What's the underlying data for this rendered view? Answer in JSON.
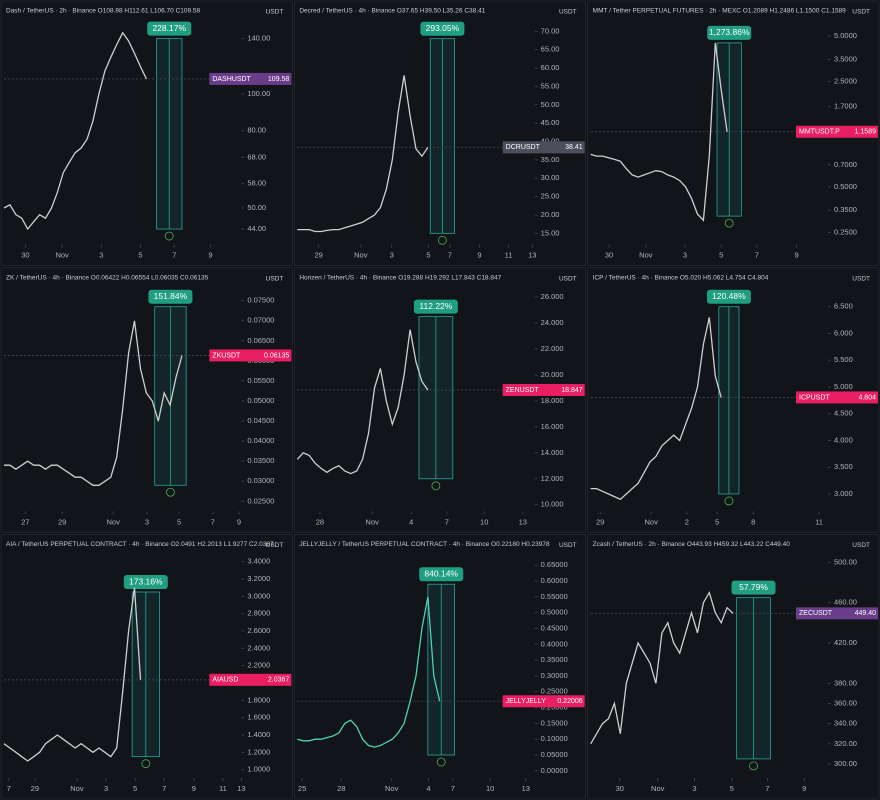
{
  "chart_data": [
    {
      "type": "line",
      "title": "Dash / TetherUS · 2h · Binance  O108.98 H112.61 L106.70 C109.58",
      "unit": "USDT",
      "log_scale": true,
      "color": "#cfcfcf",
      "values": [
        50,
        51,
        48,
        47,
        44,
        46,
        48,
        47,
        50,
        55,
        62,
        66,
        70,
        72,
        76,
        85,
        100,
        115,
        125,
        135,
        145,
        138,
        128,
        118,
        109.58
      ],
      "xlim": [
        0,
        40
      ],
      "xticks": [
        {
          "value": 3.6,
          "label": "30"
        },
        {
          "value": 9.8,
          "label": "Nov"
        },
        {
          "value": 16.4,
          "label": "3"
        },
        {
          "value": 23,
          "label": "5"
        },
        {
          "value": 28.7,
          "label": "7"
        },
        {
          "value": 34.8,
          "label": "9"
        }
      ],
      "ylim": [
        41,
        153
      ],
      "yticks": [
        {
          "value": 44,
          "label": "44.00"
        },
        {
          "value": 50,
          "label": "50.00"
        },
        {
          "value": 58,
          "label": "58.00"
        },
        {
          "value": 68,
          "label": "68.00"
        },
        {
          "value": 80,
          "label": "80.00"
        },
        {
          "value": 100,
          "label": "100.00"
        },
        {
          "value": 140,
          "label": "140.00"
        }
      ],
      "price_label": {
        "symbol": "DASHUSDT",
        "value": 109.58,
        "color": "#6a3d8a"
      },
      "measure": {
        "label": "228.17%",
        "x": [
          25.7,
          30
        ],
        "y": [
          44,
          140
        ]
      }
    },
    {
      "type": "line",
      "title": "Decred / TetherUS · 4h · Binance  O37.65 H39.50 L35.26 C38.41",
      "unit": "USDT",
      "color": "#cfcfcf",
      "values": [
        16,
        16,
        16,
        15.5,
        15.5,
        15.8,
        16,
        16,
        16.5,
        17,
        17.5,
        18,
        19,
        20,
        22,
        27,
        35,
        48,
        58,
        47,
        38,
        36,
        38.41
      ],
      "xlim": [
        0,
        40
      ],
      "xticks": [
        {
          "value": 3.6,
          "label": "29"
        },
        {
          "value": 10.7,
          "label": "Nov"
        },
        {
          "value": 15.9,
          "label": "3"
        },
        {
          "value": 22.1,
          "label": "5"
        },
        {
          "value": 25.7,
          "label": "7"
        },
        {
          "value": 30.7,
          "label": "9"
        },
        {
          "value": 35.6,
          "label": "11"
        },
        {
          "value": 39.6,
          "label": "13"
        }
      ],
      "ylim": [
        13,
        72
      ],
      "yticks": [
        {
          "value": 15,
          "label": "15.00"
        },
        {
          "value": 20,
          "label": "20.00"
        },
        {
          "value": 25,
          "label": "25.00"
        },
        {
          "value": 30,
          "label": "30.00"
        },
        {
          "value": 35,
          "label": "35.00"
        },
        {
          "value": 40,
          "label": "40.00"
        },
        {
          "value": 45,
          "label": "45.00"
        },
        {
          "value": 50,
          "label": "50.00"
        },
        {
          "value": 55,
          "label": "55.00"
        },
        {
          "value": 60,
          "label": "60.00"
        },
        {
          "value": 65,
          "label": "65.00"
        },
        {
          "value": 70,
          "label": "70.00"
        }
      ],
      "price_label": {
        "symbol": "DCRUSDT",
        "value": 38.41,
        "color": "#4a4f5c"
      },
      "measure": {
        "label": "293.05%",
        "x": [
          22.4,
          26.5
        ],
        "y": [
          15,
          68
        ]
      }
    },
    {
      "type": "line",
      "title": "MMT / Tether PERPETUAL FUTURES · 2h · MEXC  O1.2089 H1.2486 L1.1500 C1.1589",
      "unit": "USDT",
      "log_scale": true,
      "color": "#cfcfcf",
      "values": [
        0.82,
        0.8,
        0.8,
        0.78,
        0.76,
        0.74,
        0.66,
        0.6,
        0.58,
        0.6,
        0.62,
        0.64,
        0.63,
        0.6,
        0.58,
        0.55,
        0.5,
        0.42,
        0.33,
        0.3,
        0.8,
        4.5,
        2.2,
        1.1589
      ],
      "xlim": [
        0,
        40
      ],
      "xticks": [
        {
          "value": 3.1,
          "label": "30"
        },
        {
          "value": 9.3,
          "label": "Nov"
        },
        {
          "value": 15.9,
          "label": "3"
        },
        {
          "value": 22,
          "label": "5"
        },
        {
          "value": 28,
          "label": "7"
        },
        {
          "value": 34.7,
          "label": "9"
        }
      ],
      "ylim": [
        0.22,
        6
      ],
      "yticks": [
        {
          "value": 0.25,
          "label": "0.2500"
        },
        {
          "value": 0.35,
          "label": "0.3500"
        },
        {
          "value": 0.5,
          "label": "0.5000"
        },
        {
          "value": 0.7,
          "label": "0.7000"
        },
        {
          "value": 1.7,
          "label": "1.7000"
        },
        {
          "value": 2.5,
          "label": "2.5000"
        },
        {
          "value": 3.5,
          "label": "3.5000"
        },
        {
          "value": 5,
          "label": "5.0000"
        }
      ],
      "price_label": {
        "symbol": "MMTUSDT.P",
        "value": 1.1589,
        "color": "#e91e63"
      },
      "measure": {
        "label": "1,273.86%",
        "x": [
          21.3,
          25.4
        ],
        "y": [
          0.32,
          4.5
        ]
      }
    },
    {
      "type": "line",
      "title": "ZK / TetherUS · 4h · Binance  O0.06422 H0.06554 L0.06035 C0.06135",
      "unit": "USDT",
      "color": "#cfcfcf",
      "values": [
        0.034,
        0.034,
        0.033,
        0.034,
        0.035,
        0.034,
        0.034,
        0.033,
        0.034,
        0.034,
        0.033,
        0.032,
        0.031,
        0.031,
        0.03,
        0.029,
        0.029,
        0.03,
        0.031,
        0.036,
        0.048,
        0.062,
        0.07,
        0.058,
        0.052,
        0.05,
        0.045,
        0.052,
        0.049,
        0.056,
        0.06135
      ],
      "xlim": [
        0,
        40
      ],
      "xticks": [
        {
          "value": 3.6,
          "label": "27"
        },
        {
          "value": 9.8,
          "label": "29"
        },
        {
          "value": 18.4,
          "label": "Nov"
        },
        {
          "value": 24.1,
          "label": "3"
        },
        {
          "value": 29.5,
          "label": "5"
        },
        {
          "value": 35.2,
          "label": "7"
        },
        {
          "value": 39.6,
          "label": "9"
        }
      ],
      "ylim": [
        0.0235,
        0.0775
      ],
      "yticks": [
        {
          "value": 0.025,
          "label": "0.02500"
        },
        {
          "value": 0.03,
          "label": "0.03000"
        },
        {
          "value": 0.035,
          "label": "0.03500"
        },
        {
          "value": 0.04,
          "label": "0.04000"
        },
        {
          "value": 0.045,
          "label": "0.04500"
        },
        {
          "value": 0.05,
          "label": "0.05000"
        },
        {
          "value": 0.055,
          "label": "0.05500"
        },
        {
          "value": 0.06,
          "label": "0.06000"
        },
        {
          "value": 0.065,
          "label": "0.06500"
        },
        {
          "value": 0.07,
          "label": "0.07000"
        },
        {
          "value": 0.075,
          "label": "0.07500"
        }
      ],
      "price_label": {
        "symbol": "ZKUSDT",
        "value": 0.06135,
        "color": "#e91e63"
      },
      "measure": {
        "label": "151.84%",
        "x": [
          25.4,
          30.7
        ],
        "y": [
          0.029,
          0.0735
        ]
      }
    },
    {
      "type": "line",
      "title": "Horizen / TetherUS · 4h · Binance  O19.288 H19.292 L17.843 C18.847",
      "unit": "USDT",
      "color": "#cfcfcf",
      "values": [
        13.5,
        14,
        13.8,
        13.2,
        12.8,
        12.5,
        12.8,
        13,
        12.6,
        12.4,
        12.6,
        13.5,
        15.5,
        19,
        20.5,
        18,
        16.2,
        17.5,
        20,
        23.5,
        21,
        19.5,
        18.847
      ],
      "xlim": [
        0,
        40
      ],
      "xticks": [
        {
          "value": 3.8,
          "label": "28"
        },
        {
          "value": 12.6,
          "label": "Nov"
        },
        {
          "value": 19.2,
          "label": "4"
        },
        {
          "value": 25.2,
          "label": "7"
        },
        {
          "value": 31.5,
          "label": "10"
        },
        {
          "value": 38,
          "label": "13"
        }
      ],
      "ylim": [
        9.8,
        26.5
      ],
      "yticks": [
        {
          "value": 10,
          "label": "10.000"
        },
        {
          "value": 12,
          "label": "12.000"
        },
        {
          "value": 14,
          "label": "14.000"
        },
        {
          "value": 16,
          "label": "16.000"
        },
        {
          "value": 18,
          "label": "18.000"
        },
        {
          "value": 20,
          "label": "20.000"
        },
        {
          "value": 22,
          "label": "22.000"
        },
        {
          "value": 24,
          "label": "24.000"
        },
        {
          "value": 26,
          "label": "26.000"
        }
      ],
      "price_label": {
        "symbol": "ZENUSDT",
        "value": 18.847,
        "color": "#e91e63"
      },
      "measure": {
        "label": "112.22%",
        "x": [
          20.5,
          26.2
        ],
        "y": [
          12,
          24.5
        ]
      }
    },
    {
      "type": "line",
      "title": "ICP / TetherUS · 4h · Binance  O5.020 H5.062 L4.754 C4.804",
      "unit": "USDT",
      "color": "#cfcfcf",
      "values": [
        3.1,
        3.1,
        3.05,
        3,
        2.95,
        2.9,
        3,
        3.1,
        3.2,
        3.4,
        3.6,
        3.7,
        3.9,
        4,
        4.1,
        4,
        4.3,
        4.6,
        5,
        5.8,
        6.3,
        5.2,
        4.804
      ],
      "xlim": [
        0,
        40
      ],
      "xticks": [
        {
          "value": 1.6,
          "label": "29"
        },
        {
          "value": 10.2,
          "label": "Nov"
        },
        {
          "value": 16.2,
          "label": "2"
        },
        {
          "value": 21.3,
          "label": "5"
        },
        {
          "value": 27.4,
          "label": "8"
        },
        {
          "value": 38.5,
          "label": "11"
        }
      ],
      "ylim": [
        2.75,
        6.8
      ],
      "yticks": [
        {
          "value": 3,
          "label": "3.000"
        },
        {
          "value": 3.5,
          "label": "3.500"
        },
        {
          "value": 4,
          "label": "4.000"
        },
        {
          "value": 4.5,
          "label": "4.500"
        },
        {
          "value": 5,
          "label": "5.000"
        },
        {
          "value": 5.5,
          "label": "5.500"
        },
        {
          "value": 6,
          "label": "6.000"
        },
        {
          "value": 6.5,
          "label": "6.500"
        }
      ],
      "price_label": {
        "symbol": "ICPUSDT",
        "value": 4.804,
        "color": "#e91e63"
      },
      "measure": {
        "label": "120.48%",
        "x": [
          21.6,
          25
        ],
        "y": [
          3,
          6.5
        ]
      }
    },
    {
      "type": "line",
      "title": "AIA / TetherUS PERPETUAL CONTRACT · 4h · Binance  O2.0491 H2.2013 L1.9277 C2.0367",
      "unit": "USDT",
      "color": "#cfcfcf",
      "values": [
        1.3,
        1.25,
        1.2,
        1.15,
        1.1,
        1.15,
        1.2,
        1.3,
        1.35,
        1.4,
        1.35,
        1.3,
        1.25,
        1.3,
        1.25,
        1.2,
        1.25,
        1.2,
        1.15,
        1.25,
        1.9,
        2.6,
        3.1,
        2.0367
      ],
      "xlim": [
        0,
        40
      ],
      "xticks": [
        {
          "value": 0.8,
          "label": "7"
        },
        {
          "value": 5.2,
          "label": "29"
        },
        {
          "value": 12.3,
          "label": "Nov"
        },
        {
          "value": 17.2,
          "label": "3"
        },
        {
          "value": 22.1,
          "label": "5"
        },
        {
          "value": 27,
          "label": "7"
        },
        {
          "value": 32,
          "label": "9"
        },
        {
          "value": 36.9,
          "label": "11"
        },
        {
          "value": 40,
          "label": "13"
        }
      ],
      "ylim": [
        0.95,
        3.45
      ],
      "yticks": [
        {
          "value": 1,
          "label": "1.0000"
        },
        {
          "value": 1.2,
          "label": "1.2000"
        },
        {
          "value": 1.4,
          "label": "1.4000"
        },
        {
          "value": 1.6,
          "label": "1.6000"
        },
        {
          "value": 1.8,
          "label": "1.8000"
        },
        {
          "value": 2,
          "label": "2.0000"
        },
        {
          "value": 2.2,
          "label": "2.2000"
        },
        {
          "value": 2.4,
          "label": "2.4000"
        },
        {
          "value": 2.6,
          "label": "2.6000"
        },
        {
          "value": 2.8,
          "label": "2.8000"
        },
        {
          "value": 3,
          "label": "3.0000"
        },
        {
          "value": 3.2,
          "label": "3.2000"
        },
        {
          "value": 3.4,
          "label": "3.4000"
        }
      ],
      "price_label": {
        "symbol": "AIAUSD",
        "value": 2.0367,
        "color": "#e91e63"
      },
      "measure": {
        "label": "173.16%",
        "x": [
          21.6,
          26.2
        ],
        "y": [
          1.15,
          3.05
        ]
      }
    },
    {
      "type": "line",
      "title": "JELLYJELLY / TetherUS PERPETUAL CONTRACT · 4h · Binance  O0.22180 H0.23978",
      "unit": "USDT",
      "color": "#4fd1b5",
      "values": [
        0.1,
        0.095,
        0.095,
        0.1,
        0.1,
        0.105,
        0.11,
        0.12,
        0.15,
        0.16,
        0.14,
        0.1,
        0.08,
        0.075,
        0.08,
        0.09,
        0.1,
        0.12,
        0.15,
        0.22,
        0.3,
        0.45,
        0.55,
        0.3,
        0.22006
      ],
      "xlim": [
        0,
        40
      ],
      "xticks": [
        {
          "value": 0.8,
          "label": "25"
        },
        {
          "value": 7.4,
          "label": "28"
        },
        {
          "value": 15.9,
          "label": "Nov"
        },
        {
          "value": 22.1,
          "label": "4"
        },
        {
          "value": 26.2,
          "label": "7"
        },
        {
          "value": 32.5,
          "label": "10"
        },
        {
          "value": 38.5,
          "label": "13"
        }
      ],
      "ylim": [
        -0.01,
        0.675
      ],
      "yticks": [
        {
          "value": 0,
          "label": "0.00000"
        },
        {
          "value": 0.05,
          "label": "0.05000"
        },
        {
          "value": 0.1,
          "label": "0.10000"
        },
        {
          "value": 0.15,
          "label": "0.15000"
        },
        {
          "value": 0.2,
          "label": "0.20000"
        },
        {
          "value": 0.25,
          "label": "0.25000"
        },
        {
          "value": 0.3,
          "label": "0.30000"
        },
        {
          "value": 0.35,
          "label": "0.35000"
        },
        {
          "value": 0.4,
          "label": "0.40000"
        },
        {
          "value": 0.45,
          "label": "0.45000"
        },
        {
          "value": 0.5,
          "label": "0.50000"
        },
        {
          "value": 0.55,
          "label": "0.55000"
        },
        {
          "value": 0.6,
          "label": "0.60000"
        },
        {
          "value": 0.65,
          "label": "0.65000"
        }
      ],
      "price_label": {
        "symbol": "JELLYJELLY",
        "value": 0.22006,
        "color": "#e91e63"
      },
      "measure": {
        "label": "840.14%",
        "x": [
          22,
          26.5
        ],
        "y": [
          0.05,
          0.59
        ]
      }
    },
    {
      "type": "line",
      "title": "Zcash / TetherUS · 2h · Binance  O443.93 H459.32 L443.22 C449.40",
      "unit": "USDT",
      "color": "#cfcfcf",
      "values": [
        320,
        330,
        340,
        345,
        360,
        330,
        380,
        400,
        420,
        410,
        400,
        380,
        430,
        440,
        420,
        410,
        430,
        450,
        430,
        460,
        470,
        450,
        440,
        455,
        449.4
      ],
      "xlim": [
        0,
        40
      ],
      "xticks": [
        {
          "value": 4.9,
          "label": "30"
        },
        {
          "value": 11.3,
          "label": "Nov"
        },
        {
          "value": 17.5,
          "label": "3"
        },
        {
          "value": 23.8,
          "label": "5"
        },
        {
          "value": 29.8,
          "label": "7"
        },
        {
          "value": 36,
          "label": "9"
        }
      ],
      "ylim": [
        290,
        505
      ],
      "yticks": [
        {
          "value": 300,
          "label": "300.00"
        },
        {
          "value": 320,
          "label": "320.00"
        },
        {
          "value": 340,
          "label": "340.00"
        },
        {
          "value": 360,
          "label": "360.00"
        },
        {
          "value": 380,
          "label": "380.00"
        },
        {
          "value": 420,
          "label": "420.00"
        },
        {
          "value": 460,
          "label": "460.00"
        },
        {
          "value": 500,
          "label": "500.00"
        }
      ],
      "price_label": {
        "symbol": "ZECUSDT",
        "value": 449.4,
        "value_label": "449.40",
        "color": "#6a3d8a"
      },
      "measure": {
        "label": "57.79%",
        "x": [
          24.6,
          30.3
        ],
        "y": [
          305,
          465
        ]
      }
    }
  ]
}
